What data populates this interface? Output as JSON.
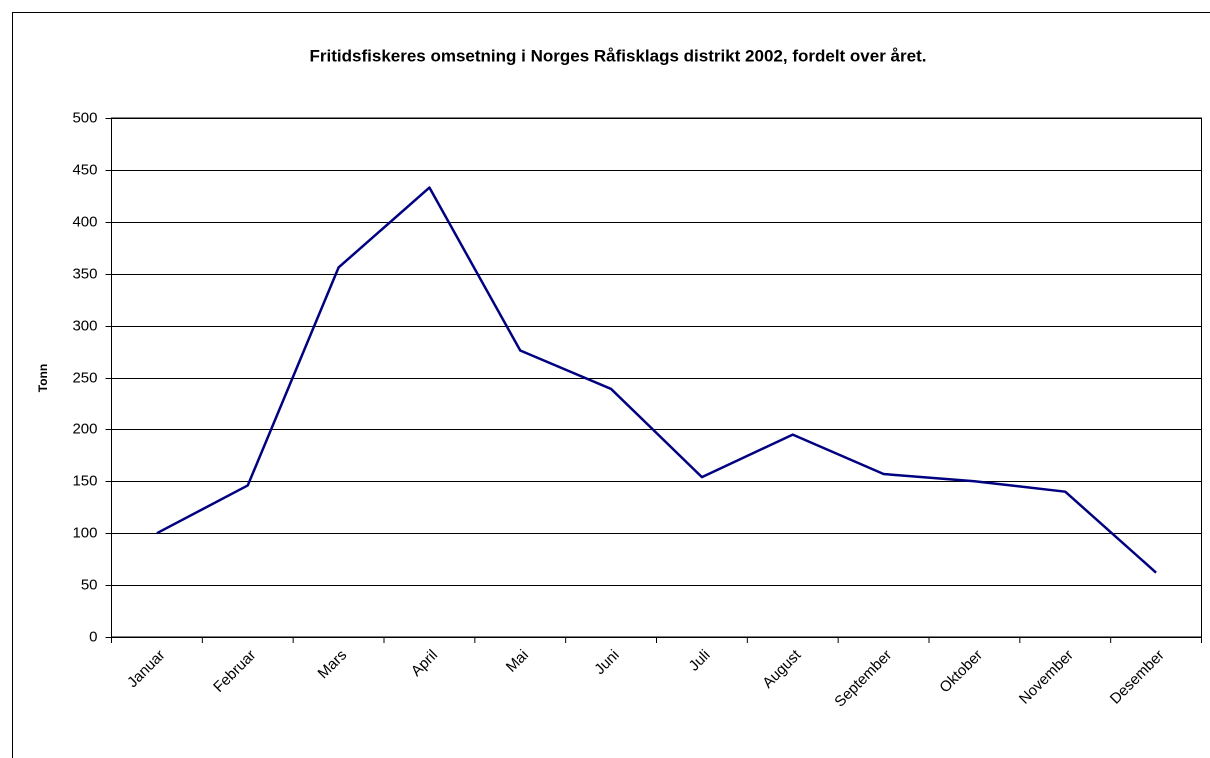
{
  "chart_data": {
    "type": "line",
    "title": "Fritidsfiskeres omsetning i Norges Råfisklags distrikt 2002, fordelt over året.",
    "y_label": "Tonn",
    "categories": [
      "Januar",
      "Februar",
      "Mars",
      "April",
      "Mai",
      "Juni",
      "Juli",
      "August",
      "September",
      "Oktober",
      "November",
      "Desember"
    ],
    "values": [
      100,
      146,
      356,
      433,
      276,
      239,
      154,
      195,
      157,
      150,
      140,
      62
    ],
    "color": "#000080",
    "ylim": [
      0,
      500
    ],
    "yticks": [
      0,
      50,
      100,
      150,
      200,
      250,
      300,
      350,
      400,
      450,
      500
    ],
    "grid": true
  }
}
